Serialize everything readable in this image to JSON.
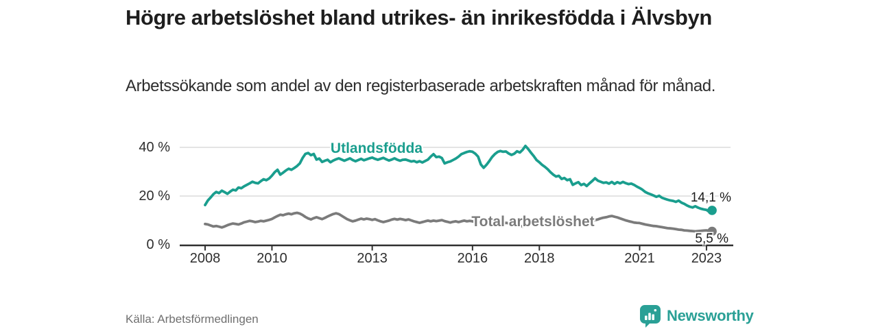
{
  "header": {
    "title": "Högre arbetslöshet bland utrikes- än inrikesfödda i Älvsbyn",
    "subtitle": "Arbetssökande som andel av den registerbaserade arbetskraften månad för månad."
  },
  "chart_data": {
    "type": "line",
    "title": "Högre arbetslöshet bland utrikes- än inrikesfödda i Älvsbyn",
    "xlabel": "",
    "ylabel": "Arbetssökande som andel av den registerbaserade arbetskraften",
    "x_start": 2008.0,
    "x_step_months": 1,
    "x_ticks": [
      2008,
      2010,
      2013,
      2016,
      2018,
      2021,
      2023
    ],
    "x_tick_labels": [
      "2008",
      "2010",
      "2013",
      "2016",
      "2018",
      "2021",
      "2023"
    ],
    "y_ticks": [
      0,
      20,
      40
    ],
    "y_tick_labels": [
      "0 %",
      "20 %",
      "40 %"
    ],
    "y_grid": [
      20,
      40
    ],
    "ylim": [
      0,
      44
    ],
    "grid": true,
    "legend_position": "inline-labels",
    "colors": {
      "utlandsfodda": "#1a9e8e",
      "total": "#7b7b7b",
      "axis": "#2f2f2f",
      "gridline": "#dcdcdc"
    },
    "series": [
      {
        "name": "Utlandsfödda",
        "color": "#1a9e8e",
        "end_label": "14,1 %",
        "end_value": 14.1,
        "values": [
          16.3,
          18.2,
          19.4,
          20.8,
          21.7,
          21.2,
          22.2,
          21.6,
          20.9,
          21.8,
          22.6,
          22.3,
          23.5,
          23.2,
          24.0,
          24.6,
          25.2,
          25.9,
          25.4,
          25.2,
          26.1,
          26.9,
          26.5,
          27.2,
          28.4,
          29.8,
          30.8,
          28.8,
          29.6,
          30.5,
          31.2,
          30.8,
          31.5,
          32.3,
          33.4,
          35.6,
          37.3,
          37.7,
          36.8,
          37.3,
          35.0,
          35.4,
          34.0,
          34.5,
          34.9,
          33.9,
          34.6,
          35.1,
          35.5,
          35.0,
          34.5,
          35.0,
          35.5,
          34.8,
          34.3,
          34.8,
          35.3,
          34.7,
          35.1,
          35.5,
          35.8,
          35.3,
          34.9,
          35.3,
          35.7,
          35.1,
          34.6,
          35.0,
          35.5,
          34.9,
          34.5,
          34.9,
          35.0,
          34.6,
          34.2,
          34.4,
          33.9,
          34.3,
          33.8,
          34.4,
          35.0,
          36.2,
          37.2,
          36.0,
          36.2,
          35.6,
          33.4,
          33.9,
          34.2,
          34.8,
          35.4,
          36.2,
          37.2,
          37.7,
          38.1,
          38.4,
          38.2,
          37.4,
          36.2,
          33.0,
          31.6,
          32.8,
          34.3,
          36.0,
          37.2,
          38.1,
          38.5,
          38.2,
          38.3,
          37.5,
          36.9,
          37.4,
          38.4,
          37.9,
          39.0,
          40.6,
          39.3,
          37.8,
          36.4,
          34.8,
          33.9,
          32.8,
          32.0,
          31.0,
          29.8,
          28.8,
          28.0,
          28.3,
          27.0,
          27.4,
          26.5,
          26.9,
          24.6,
          25.2,
          25.7,
          24.5,
          25.0,
          24.1,
          25.2,
          26.2,
          27.3,
          26.3,
          25.9,
          25.4,
          25.6,
          25.1,
          25.8,
          25.0,
          25.7,
          25.2,
          25.8,
          25.3,
          24.9,
          25.1,
          24.6,
          23.9,
          23.3,
          22.6,
          21.7,
          21.1,
          20.7,
          20.2,
          19.7,
          20.1,
          19.3,
          18.9,
          18.5,
          18.2,
          18.0,
          17.6,
          18.1,
          17.3,
          16.8,
          16.1,
          15.6,
          15.3,
          15.8,
          15.2,
          14.8,
          14.5,
          14.3,
          13.5,
          14.1
        ]
      },
      {
        "name": "Total arbetslöshet",
        "color": "#7b7b7b",
        "end_label": "5,5 %",
        "end_value": 5.5,
        "values": [
          8.5,
          8.3,
          7.9,
          7.5,
          7.7,
          7.4,
          7.1,
          7.5,
          8.0,
          8.4,
          8.7,
          8.5,
          8.3,
          8.7,
          9.2,
          9.5,
          9.8,
          9.6,
          9.3,
          9.5,
          9.8,
          9.6,
          9.9,
          10.2,
          10.6,
          11.2,
          11.8,
          12.3,
          12.1,
          12.5,
          12.8,
          12.5,
          12.9,
          13.1,
          12.8,
          12.2,
          11.4,
          10.8,
          10.4,
          10.9,
          11.3,
          10.9,
          10.5,
          11.0,
          11.6,
          12.1,
          12.6,
          12.9,
          12.6,
          11.9,
          11.2,
          10.5,
          10.0,
          9.6,
          9.9,
          10.3,
          10.7,
          10.4,
          10.7,
          10.5,
          10.2,
          10.5,
          10.0,
          9.6,
          9.3,
          9.6,
          9.9,
          10.3,
          10.6,
          10.3,
          10.6,
          10.4,
          10.1,
          10.4,
          10.0,
          9.6,
          9.3,
          9.0,
          9.3,
          9.6,
          9.9,
          9.6,
          9.9,
          9.7,
          9.9,
          10.1,
          9.7,
          9.4,
          9.1,
          9.4,
          9.6,
          9.3,
          9.6,
          9.9,
          9.6,
          9.8,
          9.6,
          9.3,
          8.9,
          8.5,
          8.2,
          8.0,
          8.3,
          8.6,
          8.9,
          8.6,
          8.9,
          8.7,
          9.0,
          8.8,
          8.5,
          8.2,
          8.0,
          7.7,
          7.5,
          7.8,
          8.1,
          8.4,
          8.2,
          8.5,
          8.3,
          8.0,
          7.8,
          8.1,
          8.4,
          8.2,
          8.0,
          8.3,
          8.6,
          8.4,
          8.7,
          8.5,
          8.3,
          8.6,
          8.9,
          8.7,
          9.0,
          9.3,
          9.5,
          9.8,
          10.1,
          10.4,
          10.8,
          11.1,
          11.3,
          11.6,
          11.8,
          11.5,
          11.2,
          10.8,
          10.4,
          10.0,
          9.7,
          9.4,
          9.1,
          9.0,
          8.9,
          8.6,
          8.3,
          8.1,
          7.9,
          7.7,
          7.6,
          7.4,
          7.2,
          7.0,
          6.8,
          6.7,
          6.6,
          6.4,
          6.2,
          6.1,
          5.9,
          5.8,
          5.7,
          5.6,
          5.5,
          5.6,
          5.7,
          5.8,
          5.9,
          5.7,
          5.5
        ]
      }
    ]
  },
  "footer": {
    "source": "Källa: Arbetsförmedlingen",
    "brand": "Newsworthy",
    "brand_color": "#2aa096"
  }
}
